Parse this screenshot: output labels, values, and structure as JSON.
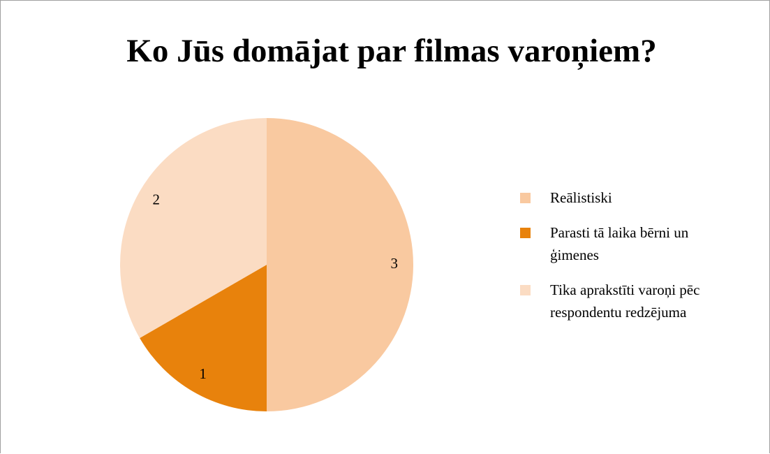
{
  "chart_data": {
    "type": "pie",
    "title": "Ko Jūs domājat par filmas varoņiem?",
    "categories": [
      "Reālistiski",
      "Parasti tā laika bērni un ģimenes",
      "Tika aprakstīti varoņi pēc respondentu redzējuma"
    ],
    "values": [
      3,
      1,
      2
    ],
    "colors": [
      "#f9c9a0",
      "#e8820c",
      "#fbdcc3"
    ]
  }
}
